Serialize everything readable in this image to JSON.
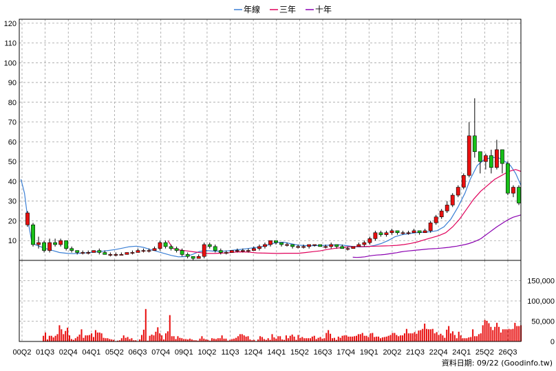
{
  "chart_data": {
    "type": "candlestick-with-volume",
    "legend": [
      {
        "name": "年線",
        "color": "#3a7fd5"
      },
      {
        "name": "三年",
        "color": "#e0005a"
      },
      {
        "name": "十年",
        "color": "#8a00b0"
      }
    ],
    "price_axis": {
      "ticks": [
        10,
        20,
        30,
        40,
        50,
        60,
        70,
        80,
        90,
        100,
        110,
        120
      ],
      "range": [
        0,
        122
      ]
    },
    "volume_axis": {
      "ticks": [
        "0",
        "50,000",
        "100,000",
        "150,000"
      ],
      "tick_values": [
        0,
        50000,
        100000,
        150000
      ],
      "range": [
        0,
        200000
      ]
    },
    "x_labels": [
      "00Q2",
      "01Q3",
      "02Q4",
      "04Q1",
      "05Q2",
      "06Q3",
      "07Q4",
      "09Q1",
      "10Q2",
      "11Q3",
      "12Q4",
      "14Q1",
      "15Q2",
      "16Q3",
      "17Q4",
      "19Q1",
      "20Q2",
      "21Q3",
      "22Q4",
      "24Q1",
      "25Q2",
      "26Q3"
    ],
    "colors": {
      "up": "#e81010",
      "down": "#18c018",
      "volume": "#e81010",
      "grid": "#a0a0a0"
    },
    "candles": [
      [
        18,
        24,
        25,
        17
      ],
      [
        18,
        8,
        19,
        7
      ],
      [
        8,
        9,
        12,
        6
      ],
      [
        9,
        5,
        10,
        4
      ],
      [
        5,
        9,
        11,
        4
      ],
      [
        9,
        8,
        11,
        7
      ],
      [
        8,
        10,
        11,
        7
      ],
      [
        10,
        6,
        10,
        5
      ],
      [
        6,
        5,
        7,
        4
      ],
      [
        5,
        4,
        5,
        3
      ],
      [
        4,
        4,
        5,
        3
      ],
      [
        4,
        4,
        5,
        3
      ],
      [
        4,
        5,
        5,
        4
      ],
      [
        5,
        4,
        6,
        3
      ],
      [
        4,
        3,
        5,
        3
      ],
      [
        3,
        3,
        4,
        2
      ],
      [
        3,
        3,
        4,
        2
      ],
      [
        3,
        3,
        4,
        3
      ],
      [
        3,
        4,
        4,
        3
      ],
      [
        4,
        4,
        5,
        3
      ],
      [
        4,
        5,
        6,
        4
      ],
      [
        5,
        5,
        6,
        4
      ],
      [
        5,
        5,
        6,
        4
      ],
      [
        5,
        6,
        7,
        5
      ],
      [
        6,
        9,
        10,
        5
      ],
      [
        9,
        7,
        10,
        6
      ],
      [
        7,
        6,
        8,
        5
      ],
      [
        6,
        5,
        7,
        4
      ],
      [
        5,
        3,
        6,
        2
      ],
      [
        3,
        2,
        4,
        1
      ],
      [
        2,
        1,
        2,
        0
      ],
      [
        1,
        2,
        3,
        1
      ],
      [
        2,
        8,
        9,
        1
      ],
      [
        8,
        7,
        9,
        6
      ],
      [
        7,
        5,
        8,
        4
      ],
      [
        5,
        4,
        6,
        3
      ],
      [
        4,
        4,
        5,
        3
      ],
      [
        4,
        5,
        5,
        4
      ],
      [
        5,
        5,
        6,
        4
      ],
      [
        5,
        5,
        6,
        4
      ],
      [
        5,
        5,
        6,
        4
      ],
      [
        5,
        6,
        7,
        5
      ],
      [
        6,
        7,
        8,
        5
      ],
      [
        7,
        8,
        9,
        6
      ],
      [
        8,
        10,
        10,
        7
      ],
      [
        10,
        9,
        10,
        8
      ],
      [
        9,
        8,
        9,
        7
      ],
      [
        8,
        8,
        9,
        7
      ],
      [
        8,
        7,
        8,
        6
      ],
      [
        7,
        7,
        8,
        6
      ],
      [
        7,
        7,
        8,
        6
      ],
      [
        7,
        8,
        8,
        6
      ],
      [
        8,
        8,
        8,
        7
      ],
      [
        8,
        7,
        8,
        7
      ],
      [
        7,
        7,
        8,
        6
      ],
      [
        7,
        8,
        9,
        6
      ],
      [
        8,
        7,
        8,
        6
      ],
      [
        7,
        6,
        8,
        6
      ],
      [
        6,
        6,
        7,
        5
      ],
      [
        6,
        7,
        7,
        6
      ],
      [
        7,
        8,
        9,
        7
      ],
      [
        8,
        9,
        10,
        7
      ],
      [
        9,
        11,
        12,
        8
      ],
      [
        11,
        14,
        15,
        10
      ],
      [
        14,
        13,
        15,
        12
      ],
      [
        13,
        14,
        15,
        12
      ],
      [
        14,
        15,
        16,
        13
      ],
      [
        15,
        14,
        15,
        13
      ],
      [
        14,
        14,
        15,
        13
      ],
      [
        14,
        14,
        15,
        13
      ],
      [
        14,
        15,
        16,
        14
      ],
      [
        15,
        14,
        15,
        13
      ],
      [
        14,
        15,
        16,
        14
      ],
      [
        15,
        19,
        20,
        14
      ],
      [
        19,
        22,
        23,
        18
      ],
      [
        22,
        25,
        26,
        21
      ],
      [
        25,
        28,
        30,
        24
      ],
      [
        28,
        33,
        34,
        27
      ],
      [
        33,
        37,
        38,
        32
      ],
      [
        37,
        43,
        44,
        36
      ],
      [
        43,
        63,
        70,
        42
      ],
      [
        63,
        55,
        82,
        52
      ],
      [
        55,
        50,
        55,
        44
      ],
      [
        50,
        53,
        54,
        46
      ],
      [
        53,
        47,
        56,
        44
      ],
      [
        47,
        56,
        61,
        46
      ],
      [
        56,
        49,
        56,
        44
      ],
      [
        49,
        34,
        50,
        33
      ],
      [
        34,
        37,
        38,
        32
      ],
      [
        37,
        29,
        38,
        28
      ]
    ],
    "volume": [
      0,
      0,
      0,
      0,
      0,
      0,
      0,
      0,
      0,
      0,
      0,
      14,
      22,
      5,
      14,
      14,
      10,
      14,
      18,
      40,
      30,
      18,
      26,
      34,
      15,
      6,
      4,
      8,
      12,
      17,
      30,
      9,
      15,
      15,
      16,
      20,
      11,
      28,
      22,
      22,
      20,
      9,
      8,
      8,
      6,
      5,
      4,
      1,
      2,
      3,
      8,
      15,
      9,
      11,
      6,
      8,
      3,
      3,
      1,
      5,
      16,
      29,
      80,
      2,
      14,
      17,
      15,
      24,
      35,
      20,
      15,
      5,
      20,
      25,
      65,
      13,
      13,
      6,
      13,
      9,
      8,
      6,
      6,
      5,
      7,
      5,
      3,
      3,
      2,
      7,
      13,
      7,
      5,
      4,
      2,
      8,
      7,
      6,
      8,
      8,
      15,
      7,
      7,
      2,
      4,
      6,
      7,
      9,
      13,
      18,
      18,
      15,
      12,
      13,
      5,
      3,
      4,
      1,
      5,
      13,
      11,
      6,
      4,
      8,
      4,
      18,
      10,
      7,
      13,
      13,
      5,
      4,
      15,
      8,
      14,
      17,
      12,
      4,
      16,
      9,
      11,
      8,
      8,
      8,
      8,
      12,
      14,
      6,
      9,
      11,
      7,
      8,
      21,
      28,
      19,
      8,
      9,
      4,
      12,
      9,
      14,
      15,
      15,
      12,
      12,
      12,
      13,
      14,
      18,
      18,
      21,
      14,
      14,
      11,
      20,
      21,
      11,
      12,
      12,
      8,
      10,
      11,
      12,
      14,
      16,
      21,
      21,
      16,
      13,
      15,
      15,
      20,
      31,
      20,
      20,
      20,
      23,
      19,
      27,
      28,
      31,
      44,
      31,
      30,
      30,
      31,
      20,
      23,
      16,
      19,
      15,
      9,
      29,
      38,
      20,
      25,
      16,
      8,
      24,
      15,
      8,
      8,
      8,
      10,
      11,
      30,
      13,
      13,
      18,
      20,
      40,
      53,
      51,
      45,
      36,
      28,
      36,
      46,
      36,
      22,
      30,
      30,
      30,
      31,
      30,
      31,
      46,
      38,
      38,
      40
    ],
    "ma_year": [
      [
        1,
        41
      ],
      [
        3,
        34
      ],
      [
        5,
        20
      ],
      [
        7,
        10
      ],
      [
        9,
        8
      ],
      [
        12,
        7
      ],
      [
        15,
        6
      ],
      [
        19,
        5
      ],
      [
        23,
        4
      ],
      [
        27,
        3.6
      ],
      [
        31,
        3.4
      ],
      [
        35,
        3.6
      ],
      [
        39,
        3.9
      ],
      [
        43,
        4.2
      ],
      [
        47,
        4.6
      ],
      [
        51,
        5
      ],
      [
        55,
        5.5
      ],
      [
        59,
        6.2
      ],
      [
        63,
        6.9
      ],
      [
        67,
        7.2
      ],
      [
        71,
        6.6
      ],
      [
        75,
        5.5
      ],
      [
        79,
        4.5
      ],
      [
        83,
        3.5
      ],
      [
        87,
        2.5
      ],
      [
        91,
        1.8
      ],
      [
        95,
        1.9
      ],
      [
        99,
        3
      ],
      [
        103,
        4.5
      ],
      [
        107,
        5
      ],
      [
        111,
        4.7
      ],
      [
        115,
        4.6
      ],
      [
        119,
        4.8
      ],
      [
        123,
        5.2
      ],
      [
        127,
        5.6
      ],
      [
        131,
        6
      ],
      [
        135,
        6.5
      ],
      [
        139,
        7
      ],
      [
        143,
        8
      ],
      [
        147,
        9
      ],
      [
        151,
        9.2
      ],
      [
        155,
        8.5
      ],
      [
        159,
        7.8
      ],
      [
        163,
        7.5
      ],
      [
        167,
        7.4
      ],
      [
        171,
        7.5
      ],
      [
        175,
        7.6
      ],
      [
        179,
        7.8
      ],
      [
        183,
        7.9
      ],
      [
        187,
        7.5
      ],
      [
        191,
        7
      ],
      [
        195,
        6.8
      ],
      [
        199,
        6.9
      ],
      [
        203,
        7.5
      ],
      [
        207,
        8.5
      ],
      [
        211,
        10
      ],
      [
        215,
        12
      ],
      [
        219,
        13
      ],
      [
        223,
        13.5
      ],
      [
        227,
        14
      ],
      [
        231,
        14.2
      ],
      [
        235,
        14.5
      ],
      [
        239,
        15
      ],
      [
        243,
        17
      ],
      [
        247,
        21
      ],
      [
        251,
        27
      ],
      [
        255,
        34
      ],
      [
        258,
        41
      ],
      [
        262,
        48
      ],
      [
        266,
        51
      ],
      [
        270,
        52
      ],
      [
        274,
        52
      ],
      [
        278,
        50
      ],
      [
        281,
        48
      ],
      [
        284,
        44
      ],
      [
        287,
        38
      ]
    ],
    "ma_3y": [
      [
        85,
        10
      ],
      [
        88,
        6
      ],
      [
        92,
        5.2
      ],
      [
        96,
        4.8
      ],
      [
        100,
        4.3
      ],
      [
        104,
        3.9
      ],
      [
        108,
        3.5
      ],
      [
        112,
        3.5
      ],
      [
        116,
        3.7
      ],
      [
        120,
        3.9
      ],
      [
        124,
        4.2
      ],
      [
        128,
        4.3
      ],
      [
        132,
        4.1
      ],
      [
        136,
        3.8
      ],
      [
        140,
        3.7
      ],
      [
        144,
        3.6
      ],
      [
        148,
        3.5
      ],
      [
        152,
        3.6
      ],
      [
        156,
        3.6
      ],
      [
        160,
        3.6
      ],
      [
        164,
        4
      ],
      [
        168,
        4.4
      ],
      [
        172,
        4.8
      ],
      [
        176,
        5.5
      ],
      [
        180,
        6
      ],
      [
        184,
        6.4
      ],
      [
        188,
        6.8
      ],
      [
        192,
        7
      ],
      [
        196,
        7
      ],
      [
        200,
        7.1
      ],
      [
        204,
        7.2
      ],
      [
        208,
        7.3
      ],
      [
        212,
        7.4
      ],
      [
        216,
        7.6
      ],
      [
        220,
        8
      ],
      [
        224,
        8.6
      ],
      [
        228,
        9.4
      ],
      [
        232,
        10.5
      ],
      [
        236,
        11.5
      ],
      [
        240,
        12.5
      ],
      [
        244,
        14
      ],
      [
        248,
        17
      ],
      [
        252,
        21
      ],
      [
        256,
        26
      ],
      [
        260,
        31
      ],
      [
        264,
        35
      ],
      [
        268,
        38
      ],
      [
        272,
        41
      ],
      [
        276,
        43
      ],
      [
        280,
        45
      ],
      [
        284,
        46
      ],
      [
        287,
        45
      ]
    ],
    "ma_10y": [
      [
        250,
        1.6
      ],
      [
        253,
        1.5
      ],
      [
        256,
        1.6
      ],
      [
        259,
        1.8
      ],
      [
        262,
        2.2
      ],
      [
        265,
        2.5
      ],
      [
        268,
        2.7
      ],
      [
        271,
        2.8
      ],
      [
        274,
        3
      ],
      [
        277,
        3.3
      ],
      [
        280,
        3.6
      ],
      [
        283,
        3.9
      ],
      [
        286,
        4.3
      ],
      [
        289,
        4.6
      ],
      [
        292,
        4.8
      ],
      [
        295,
        5
      ],
      [
        298,
        5.2
      ],
      [
        301,
        5.4
      ],
      [
        304,
        5.6
      ],
      [
        307,
        5.8
      ],
      [
        310,
        5.9
      ],
      [
        313,
        6
      ],
      [
        316,
        6.2
      ],
      [
        319,
        6.4
      ],
      [
        322,
        6.6
      ],
      [
        325,
        6.9
      ],
      [
        328,
        7.2
      ],
      [
        331,
        7.6
      ],
      [
        334,
        8
      ],
      [
        337,
        8.5
      ],
      [
        340,
        9.2
      ],
      [
        343,
        10
      ],
      [
        346,
        11
      ],
      [
        349,
        12.5
      ],
      [
        352,
        14
      ],
      [
        355,
        15.5
      ],
      [
        358,
        17
      ],
      [
        361,
        18.3
      ],
      [
        364,
        19.6
      ],
      [
        367,
        20.8
      ],
      [
        370,
        21.8
      ],
      [
        373,
        22.4
      ],
      [
        376,
        23
      ]
    ],
    "credit": "資料日期: 09/22  (Goodinfo.tw)"
  }
}
